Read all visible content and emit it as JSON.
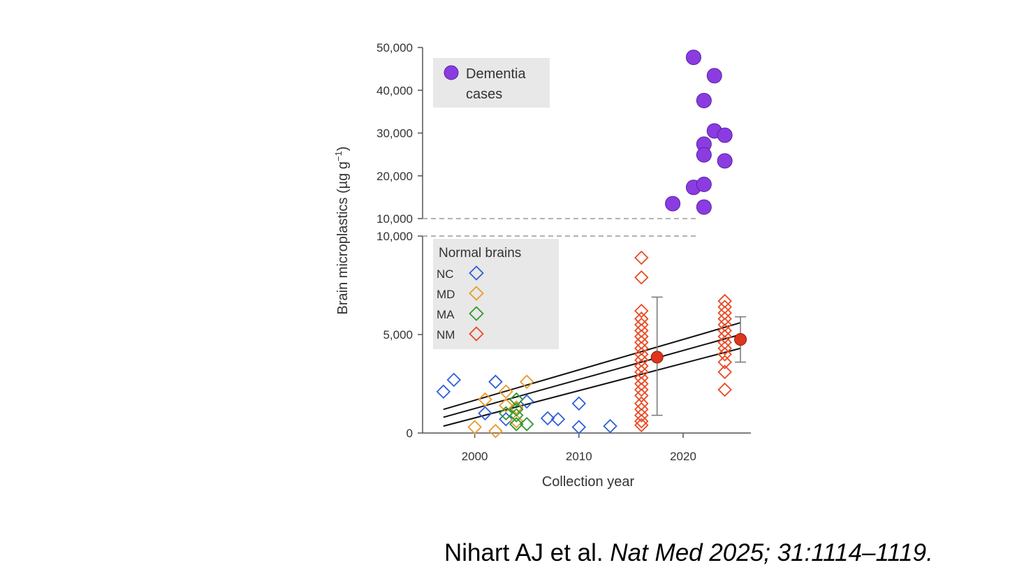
{
  "chart_data": {
    "type": "scatter",
    "xlabel": "Collection year",
    "ylabel_main": "Brain microplastics (µg g",
    "ylabel_sup": "−1",
    "ylabel_close": ")",
    "xlim": [
      1995,
      2026.5
    ],
    "x_ticks": [
      2000,
      2010,
      2020
    ],
    "x_tick_labels": [
      "2000",
      "2010",
      "2020"
    ],
    "upper_panel": {
      "ylim": [
        10000,
        50000
      ],
      "y_ticks": [
        10000,
        20000,
        30000,
        40000,
        50000
      ],
      "y_tick_labels": [
        "10,000",
        "20,000",
        "30,000",
        "40,000",
        "50,000"
      ],
      "legend_title_line1": "Dementia",
      "legend_title_line2": "cases",
      "series": [
        {
          "name": "Dementia cases",
          "color": "#8a3ce0",
          "marker": "circle",
          "points": [
            [
              2019,
              13500
            ],
            [
              2021,
              47700
            ],
            [
              2021,
              17300
            ],
            [
              2022,
              37600
            ],
            [
              2022,
              27400
            ],
            [
              2022,
              24900
            ],
            [
              2022,
              18000
            ],
            [
              2022,
              12700
            ],
            [
              2023,
              43400
            ],
            [
              2023,
              30500
            ],
            [
              2024,
              29500
            ],
            [
              2024,
              23500
            ]
          ]
        }
      ]
    },
    "lower_panel": {
      "ylim": [
        0,
        10000
      ],
      "y_ticks": [
        0,
        5000,
        10000
      ],
      "y_tick_labels": [
        "0",
        "5,000",
        "10,000"
      ],
      "legend_title": "Normal brains",
      "series": [
        {
          "name": "NC",
          "color": "#2f5fd8",
          "marker": "diamond",
          "points": [
            [
              1997,
              2100
            ],
            [
              1998,
              2700
            ],
            [
              2001,
              1000
            ],
            [
              2002,
              2600
            ],
            [
              2003,
              700
            ],
            [
              2005,
              1600
            ],
            [
              2007,
              750
            ],
            [
              2008,
              700
            ],
            [
              2010,
              1500
            ],
            [
              2010,
              300
            ],
            [
              2013,
              350
            ]
          ]
        },
        {
          "name": "MD",
          "color": "#eb9a2a",
          "marker": "diamond",
          "points": [
            [
              2000,
              300
            ],
            [
              2001,
              1700
            ],
            [
              2002,
              100
            ],
            [
              2003,
              2100
            ],
            [
              2003,
              1400
            ],
            [
              2004,
              600
            ],
            [
              2005,
              2600
            ],
            [
              2004,
              1300
            ]
          ]
        },
        {
          "name": "MA",
          "color": "#2e9b2e",
          "marker": "diamond",
          "points": [
            [
              2004,
              1700
            ],
            [
              2004,
              1200
            ],
            [
              2004,
              900
            ],
            [
              2004,
              450
            ],
            [
              2005,
              450
            ],
            [
              2003,
              1000
            ]
          ]
        },
        {
          "name": "NM",
          "color": "#ea4a23",
          "marker": "diamond",
          "points": [
            [
              2016,
              8900
            ],
            [
              2016,
              7900
            ],
            [
              2016,
              6200
            ],
            [
              2016,
              5800
            ],
            [
              2016,
              5500
            ],
            [
              2016,
              5200
            ],
            [
              2016,
              4900
            ],
            [
              2016,
              4600
            ],
            [
              2016,
              4300
            ],
            [
              2016,
              4000
            ],
            [
              2016,
              3700
            ],
            [
              2016,
              3400
            ],
            [
              2016,
              3100
            ],
            [
              2016,
              2800
            ],
            [
              2016,
              2500
            ],
            [
              2016,
              2200
            ],
            [
              2016,
              1900
            ],
            [
              2016,
              1500
            ],
            [
              2016,
              1200
            ],
            [
              2016,
              900
            ],
            [
              2016,
              600
            ],
            [
              2016,
              400
            ],
            [
              2024,
              6700
            ],
            [
              2024,
              6400
            ],
            [
              2024,
              6100
            ],
            [
              2024,
              5800
            ],
            [
              2024,
              5500
            ],
            [
              2024,
              5200
            ],
            [
              2024,
              4900
            ],
            [
              2024,
              4600
            ],
            [
              2024,
              4300
            ],
            [
              2024,
              4000
            ],
            [
              2024,
              3600
            ],
            [
              2024,
              3100
            ],
            [
              2024,
              2200
            ]
          ]
        }
      ],
      "group_means": [
        {
          "x": 2017.5,
          "y": 3850,
          "err_low": 900,
          "err_high": 6900
        },
        {
          "x": 2025.5,
          "y": 4750,
          "err_low": 3600,
          "err_high": 5900
        }
      ],
      "regression": {
        "x_start": 1997,
        "x_end": 2025.5,
        "fit_start": 800,
        "fit_end": 5000,
        "upper_start": 1200,
        "upper_end": 5600,
        "lower_start": 350,
        "lower_end": 4300
      }
    },
    "mean_marker_color": "#e0341c"
  },
  "citation": {
    "authors": "Nihart AJ  et al.",
    "journal": "Nat Med 2025; 31:1114–1119."
  }
}
